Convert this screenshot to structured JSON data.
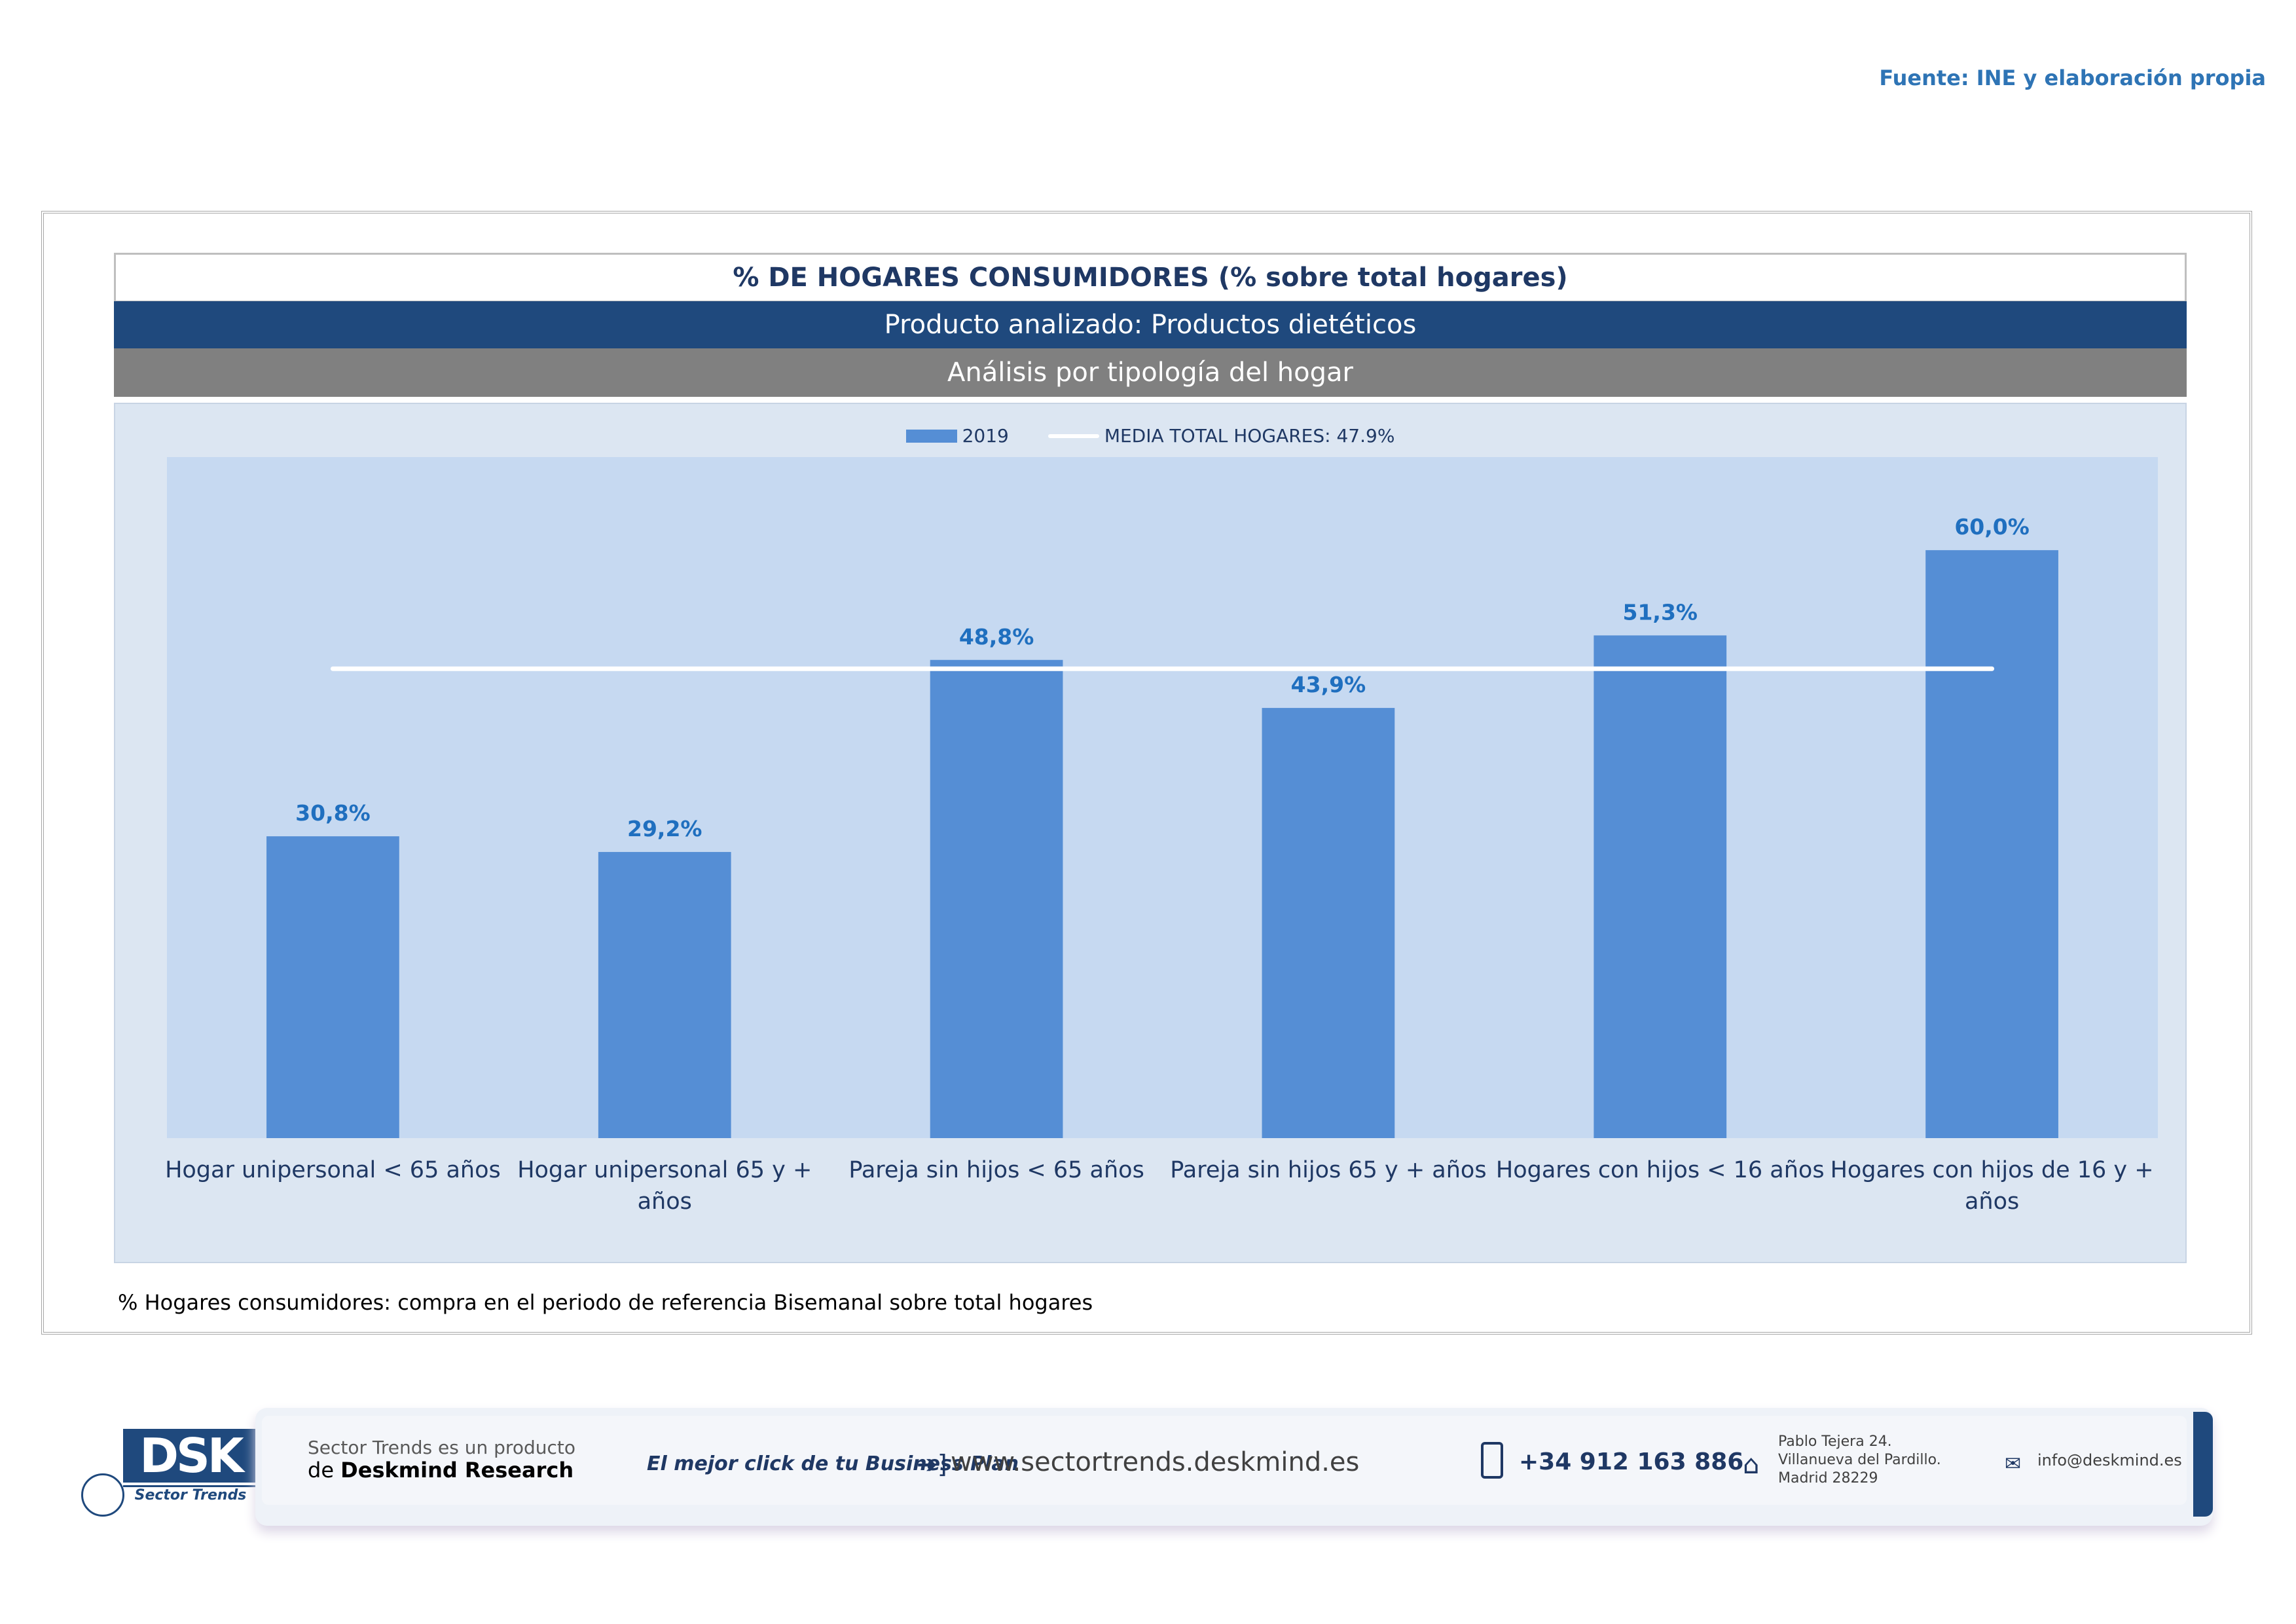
{
  "source": "Fuente: INE y elaboración propia",
  "header": {
    "title": "% DE HOGARES CONSUMIDORES (% sobre total hogares)",
    "product": "Producto analizado: Productos dietéticos",
    "analysis": "Análisis por tipología del hogar"
  },
  "legend": {
    "series_label": "2019",
    "line_label": "MEDIA TOTAL  HOGARES:  47.9%"
  },
  "chart_data": {
    "type": "bar",
    "categories": [
      [
        "Hogar unipersonal < 65 años"
      ],
      [
        "Hogar unipersonal  65 y +",
        "años"
      ],
      [
        "Pareja sin hijos < 65 años"
      ],
      [
        "Pareja sin hijos 65 y + años"
      ],
      [
        "Hogares con hijos < 16 años"
      ],
      [
        "Hogares con hijos de 16 y +",
        "años"
      ]
    ],
    "series": [
      {
        "name": "2019",
        "values": [
          30.8,
          29.2,
          48.8,
          43.9,
          51.3,
          60.0
        ]
      }
    ],
    "value_labels": [
      "30,8%",
      "29,2%",
      "48,8%",
      "43,9%",
      "51,3%",
      "60,0%"
    ],
    "reference_line": {
      "name": "MEDIA TOTAL  HOGARES",
      "value": 47.9
    },
    "ylim": [
      0,
      69.5
    ],
    "grid": false,
    "legend_position": "top-center",
    "colors": {
      "bar": "#558ED5",
      "line": "#FFFFFF",
      "label": "#1F6FBF",
      "category": "#1F3864"
    }
  },
  "footnote": "% Hogares consumidores: compra en el periodo de referencia Bisemanal sobre total hogares",
  "footer": {
    "logo_text": "DSK",
    "logo_subtitle": "Sector Trends",
    "product_line1": "Sector Trends es un producto",
    "product_line2_prefix": "de ",
    "product_line2_brand": "Deskmind Research",
    "slogan": "El mejor click de tu Business Plan",
    "website": "www.sectortrends.deskmind.es",
    "phone": "+34 912 163 886",
    "address": [
      "Pablo Tejera 24.",
      "Villanueva del Pardillo.",
      "Madrid 28229"
    ],
    "email": "info@deskmind.es",
    "icons": [
      "arrow-right-icon",
      "phone-icon",
      "home-icon",
      "mail-icon"
    ]
  }
}
